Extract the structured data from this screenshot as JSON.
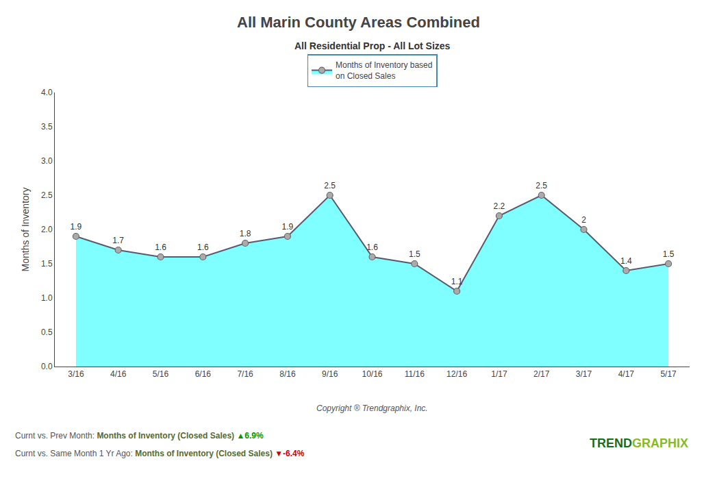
{
  "chart_data": {
    "type": "area",
    "title": "All Marin County Areas Combined",
    "subtitle": "All Residential Prop - All Lot Sizes",
    "ylabel": "Months of Inventory",
    "categories": [
      "3/16",
      "4/16",
      "5/16",
      "6/16",
      "7/16",
      "8/16",
      "9/16",
      "10/16",
      "11/16",
      "12/16",
      "1/17",
      "2/17",
      "3/17",
      "4/17",
      "5/17"
    ],
    "series": [
      {
        "name": "Months of Inventory based\non Closed Sales",
        "color": "#7FFFFF",
        "marker": "circle",
        "values": [
          1.9,
          1.7,
          1.6,
          1.6,
          1.8,
          1.9,
          2.5,
          1.6,
          1.5,
          1.1,
          2.2,
          2.5,
          2.0,
          1.4,
          1.5
        ]
      }
    ],
    "ylim": [
      0,
      4
    ],
    "yticks": [
      {
        "value": 0,
        "label": "0.0"
      },
      0.5,
      {
        "value": 1.0,
        "label": "1.0"
      },
      1.5,
      {
        "value": 2.0,
        "label": "2.0"
      },
      2.5,
      {
        "value": 3.0,
        "label": "3.0"
      },
      3.5,
      {
        "value": 4.0,
        "label": "4.0"
      }
    ],
    "grid": false,
    "legend": "top",
    "data_labels": true,
    "annotations": [
      [
        {
          "text": "Copyright ® Trendgraphix, Inc."
        }
      ],
      [
        {
          "text": "Curnt vs. Prev Month: "
        },
        {
          "text": "Months of Inventory (Closed Sales)",
          "color": "#556B2F"
        },
        {
          "text": " ▲6.9%",
          "color": "#009900"
        }
      ],
      [
        {
          "text": "Curnt vs. Same Month 1 Yr Ago: "
        },
        {
          "text": "Months of Inventory (Closed Sales)",
          "color": "#556B2F"
        },
        {
          "text": " ▼-6.4%",
          "color": "#CC0000"
        }
      ],
      [
        {
          "text": "TREND",
          "color": "#1A6B1A"
        },
        {
          "text": "GRAPHIX",
          "color": "#88BB22"
        }
      ]
    ]
  }
}
